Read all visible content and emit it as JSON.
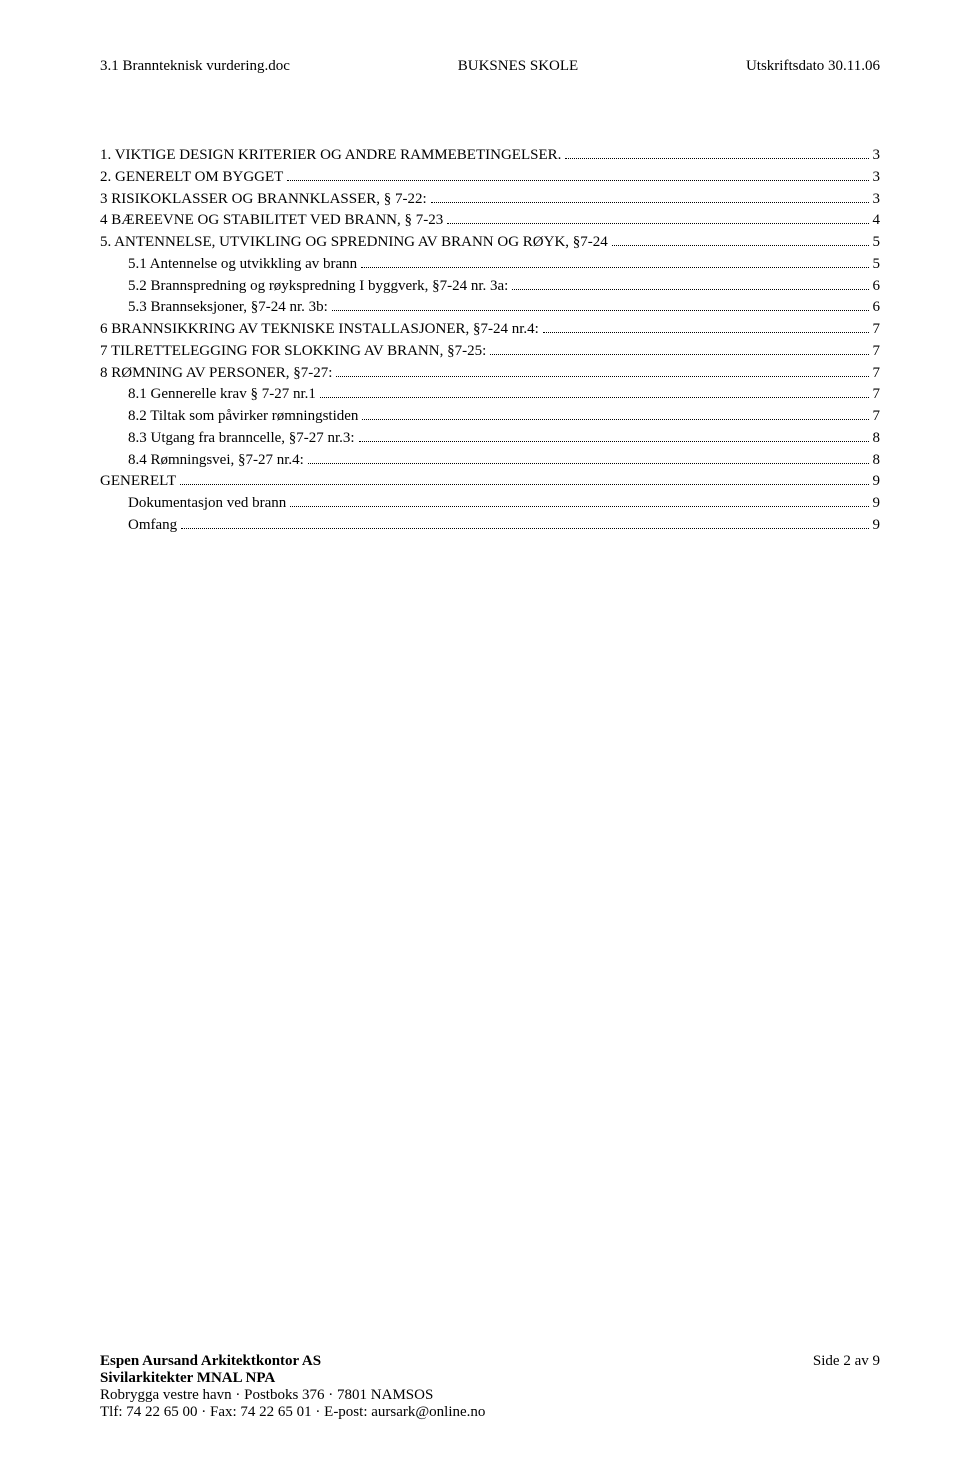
{
  "header": {
    "left": "3.1 Brannteknisk vurdering.doc",
    "center": "BUKSNES SKOLE",
    "right": "Utskriftsdato 30.11.06"
  },
  "toc": [
    {
      "label": "1. VIKTIGE DESIGN KRITERIER OG ANDRE RAMMEBETINGELSER.",
      "page": "3",
      "indent": 0
    },
    {
      "label": "2. GENERELT OM BYGGET",
      "page": "3",
      "indent": 0
    },
    {
      "label": "3 RISIKOKLASSER OG BRANNKLASSER, § 7-22:",
      "page": "3",
      "indent": 0
    },
    {
      "label": "4 BÆREEVNE OG STABILITET VED BRANN, § 7-23",
      "page": "4",
      "indent": 0
    },
    {
      "label": "5. ANTENNELSE, UTVIKLING OG SPREDNING AV BRANN OG RØYK, §7-24",
      "page": "5",
      "indent": 0
    },
    {
      "label": "5.1 Antennelse og utvikkling av brann",
      "page": "5",
      "indent": 1
    },
    {
      "label": "5.2 Brannspredning og røykspredning I byggverk, §7-24 nr. 3a:",
      "page": "6",
      "indent": 1
    },
    {
      "label": "5.3      Brannseksjoner, §7-24 nr. 3b:",
      "page": "6",
      "indent": 1
    },
    {
      "label": "6 BRANNSIKKRING AV TEKNISKE INSTALLASJONER, §7-24 nr.4:",
      "page": "7",
      "indent": 0
    },
    {
      "label": "7 TILRETTELEGGING FOR SLOKKING AV BRANN, §7-25:",
      "page": "7",
      "indent": 0
    },
    {
      "label": "8 RØMNING AV PERSONER, §7-27:",
      "page": "7",
      "indent": 0
    },
    {
      "label": "8.1 Gennerelle krav § 7-27 nr.1",
      "page": "7",
      "indent": 1
    },
    {
      "label": "8.2 Tiltak som påvirker rømningstiden",
      "page": "7",
      "indent": 1
    },
    {
      "label": "8.3 Utgang fra branncelle, §7-27 nr.3:",
      "page": "8",
      "indent": 1
    },
    {
      "label": "8.4 Rømningsvei, §7-27 nr.4:",
      "page": "8",
      "indent": 1
    },
    {
      "label": "GENERELT",
      "page": "9",
      "indent": 0
    },
    {
      "label": "Dokumentasjon ved brann",
      "page": "9",
      "indent": 1
    },
    {
      "label": "Omfang",
      "page": "9",
      "indent": 1
    }
  ],
  "footer": {
    "company": "Espen Aursand Arkitektkontor AS",
    "subtitle": "Sivilarkitekter MNAL NPA",
    "address": "Robrygga vestre havn · Postboks 376 · 7801 NAMSOS",
    "contact": "Tlf: 74 22 65 00 · Fax: 74 22 65 01 · E-post: aursark@online.no",
    "pageinfo": "Side 2 av 9"
  }
}
